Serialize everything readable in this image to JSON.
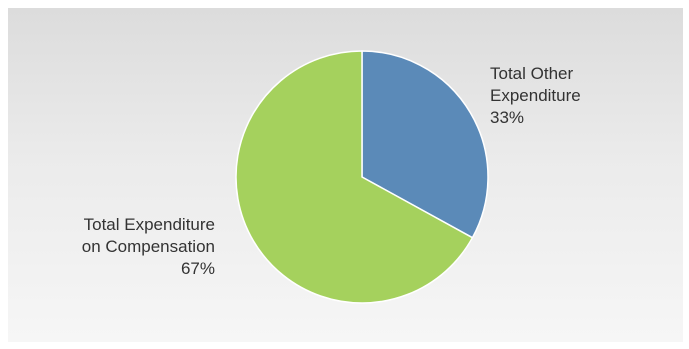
{
  "chart_data": {
    "type": "pie",
    "slices": [
      {
        "label_lines": [
          "Total Other",
          "Expenditure"
        ],
        "percent_label": "33%",
        "value": 33,
        "color": "#5b8ab8"
      },
      {
        "label_lines": [
          "Total Expenditure",
          "on Compensation"
        ],
        "percent_label": "67%",
        "value": 67,
        "color": "#a5d15d"
      }
    ],
    "start_angle_deg": 0,
    "direction": "clockwise",
    "legend": "none",
    "slice_border_color": "#ffffff"
  },
  "background": {
    "gradient_top": "#dcdcdc",
    "gradient_bottom": "#f6f6f6"
  }
}
